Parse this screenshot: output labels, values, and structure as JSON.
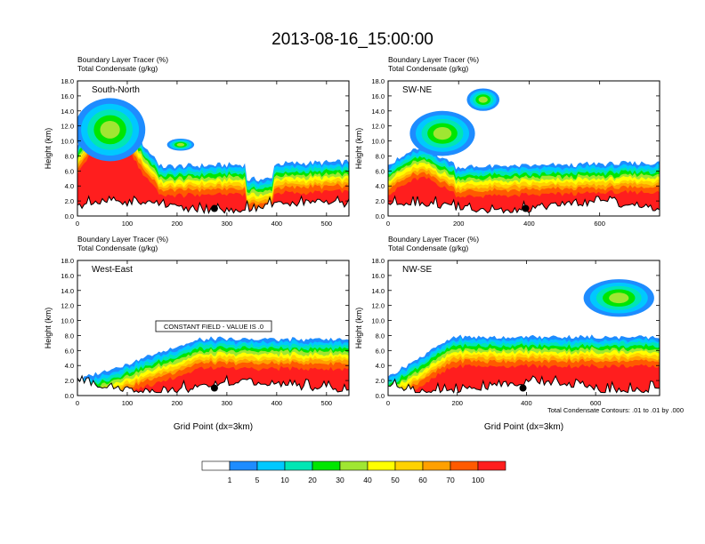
{
  "figure_title": "2013-08-16_15:00:00",
  "colors": {
    "palette": [
      "#ffffff",
      "#1e8cff",
      "#00c8ff",
      "#00e6b4",
      "#00e600",
      "#a0e632",
      "#ffff00",
      "#ffd200",
      "#ffa000",
      "#ff5a00",
      "#ff1e1e"
    ],
    "terrain_line": "#000000"
  },
  "colorbar": {
    "labels": [
      "1",
      "5",
      "10",
      "20",
      "30",
      "40",
      "50",
      "60",
      "70",
      "100"
    ]
  },
  "footnote": "Total Condensate Contours: .01 to .01 by .000",
  "chart_data": [
    {
      "type": "heatmap",
      "panel": "south-north",
      "title_line1": "Boundary Layer Tracer   (%)",
      "title_line2": "Total Condensate   (g/kg)",
      "panel_label": "South-North",
      "ylabel": "Height (km)",
      "xlabel": "",
      "xlim": [
        0,
        545
      ],
      "ylim": [
        0,
        18
      ],
      "xticks": [
        "0",
        "100",
        "200",
        "300",
        "400",
        "500"
      ],
      "xtick_values": [
        0,
        100,
        200,
        300,
        400,
        500
      ],
      "yticks": [
        "0.0",
        "2.0",
        "4.0",
        "6.0",
        "8.0",
        "10.0",
        "12.0",
        "14.0",
        "16.0",
        "18.0"
      ],
      "marker_x": 275,
      "marker_y": 1.0,
      "note": ""
    },
    {
      "type": "heatmap",
      "panel": "sw-ne",
      "title_line1": "Boundary Layer Tracer   (%)",
      "title_line2": "Total Condensate   (g/kg)",
      "panel_label": "SW-NE",
      "ylabel": "Height (km)",
      "xlabel": "",
      "xlim": [
        0,
        770
      ],
      "ylim": [
        0,
        18
      ],
      "xticks": [
        "0",
        "200",
        "400",
        "600"
      ],
      "xtick_values": [
        0,
        200,
        400,
        600
      ],
      "yticks": [
        "0.0",
        "2.0",
        "4.0",
        "6.0",
        "8.0",
        "10.0",
        "12.0",
        "14.0",
        "16.0",
        "18.0"
      ],
      "marker_x": 390,
      "marker_y": 1.0,
      "note": ""
    },
    {
      "type": "heatmap",
      "panel": "west-east",
      "title_line1": "Boundary Layer Tracer   (%)",
      "title_line2": "Total Condensate   (g/kg)",
      "panel_label": "West-East",
      "ylabel": "Height (km)",
      "xlabel": "Grid Point (dx=3km)",
      "xlim": [
        0,
        545
      ],
      "ylim": [
        0,
        18
      ],
      "xticks": [
        "0",
        "100",
        "200",
        "300",
        "400",
        "500"
      ],
      "xtick_values": [
        0,
        100,
        200,
        300,
        400,
        500
      ],
      "yticks": [
        "0.0",
        "2.0",
        "4.0",
        "6.0",
        "8.0",
        "10.0",
        "12.0",
        "14.0",
        "16.0",
        "18.0"
      ],
      "marker_x": 275,
      "marker_y": 1.0,
      "note": "CONSTANT FIELD - VALUE IS .0"
    },
    {
      "type": "heatmap",
      "panel": "nw-se",
      "title_line1": "Boundary Layer Tracer   (%)",
      "title_line2": "Total Condensate   (g/kg)",
      "panel_label": "NW-SE",
      "ylabel": "Height (km)",
      "xlabel": "Grid Point (dx=3km)",
      "xlim": [
        0,
        785
      ],
      "ylim": [
        0,
        18
      ],
      "xticks": [
        "0",
        "200",
        "400",
        "600"
      ],
      "xtick_values": [
        0,
        200,
        400,
        600
      ],
      "yticks": [
        "0.0",
        "2.0",
        "4.0",
        "6.0",
        "8.0",
        "10.0",
        "12.0",
        "14.0",
        "16.0",
        "18.0"
      ],
      "marker_x": 390,
      "marker_y": 1.0,
      "note": ""
    }
  ]
}
